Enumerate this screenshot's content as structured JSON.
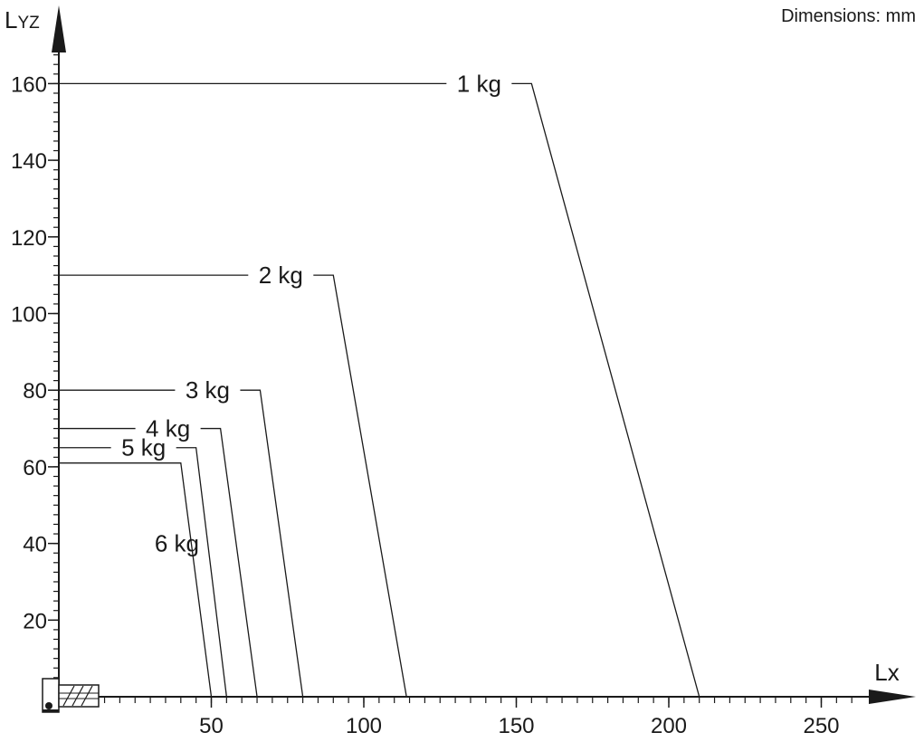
{
  "chart_data": {
    "type": "line",
    "title": "",
    "note": "Dimensions: mm",
    "xlabel": "Lx",
    "ylabel": "LYZ",
    "xlim": [
      0,
      265
    ],
    "ylim": [
      0,
      170
    ],
    "x_ticks": [
      50,
      100,
      150,
      200,
      250
    ],
    "y_ticks": [
      20,
      40,
      60,
      80,
      100,
      120,
      140,
      160
    ],
    "grid": false,
    "series": [
      {
        "name": "1 kg",
        "points": [
          [
            0,
            160
          ],
          [
            155,
            160
          ],
          [
            210,
            0
          ]
        ]
      },
      {
        "name": "2 kg",
        "points": [
          [
            0,
            110
          ],
          [
            90,
            110
          ],
          [
            114,
            0
          ]
        ]
      },
      {
        "name": "3 kg",
        "points": [
          [
            0,
            80
          ],
          [
            66,
            80
          ],
          [
            80,
            0
          ]
        ]
      },
      {
        "name": "4 kg",
        "points": [
          [
            0,
            70
          ],
          [
            53,
            70
          ],
          [
            65,
            0
          ]
        ]
      },
      {
        "name": "5 kg",
        "points": [
          [
            0,
            65
          ],
          [
            45,
            65
          ],
          [
            55,
            0
          ]
        ]
      },
      {
        "name": "6 kg",
        "points": [
          [
            0,
            61
          ],
          [
            40,
            61
          ],
          [
            50,
            0
          ]
        ]
      }
    ]
  }
}
